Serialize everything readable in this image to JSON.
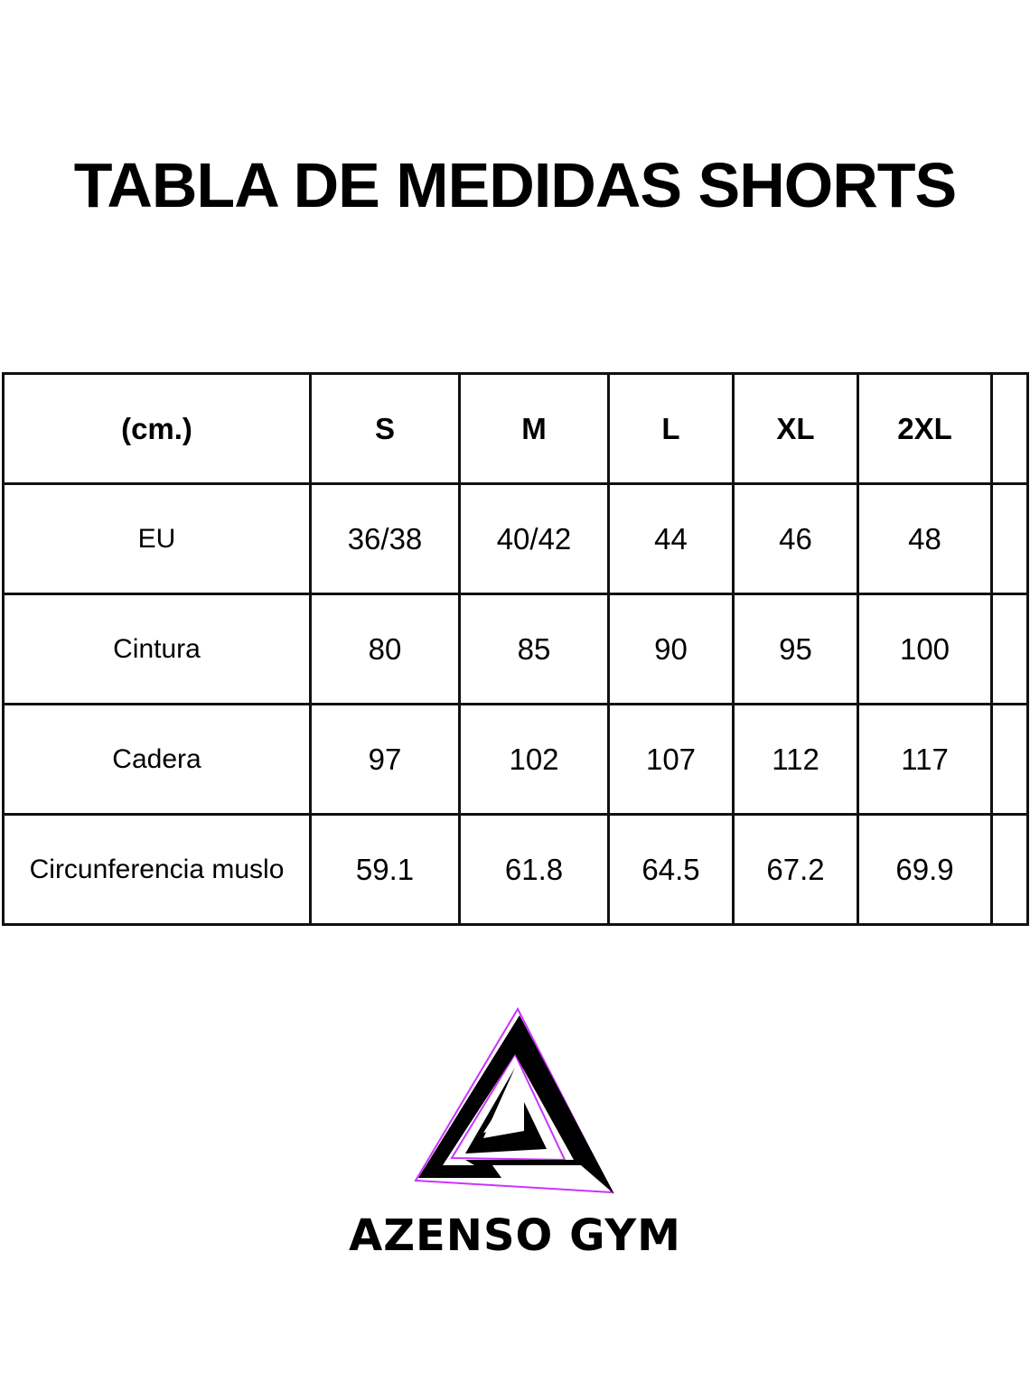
{
  "title": "TABLA DE MEDIDAS SHORTS",
  "table": {
    "header": [
      "(cm.)",
      "S",
      "M",
      "L",
      "XL",
      "2XL",
      ""
    ],
    "rows": [
      {
        "label": "EU",
        "values": [
          "36/38",
          "40/42",
          "44",
          "46",
          "48",
          ""
        ]
      },
      {
        "label": "Cintura",
        "values": [
          "80",
          "85",
          "90",
          "95",
          "100",
          ""
        ]
      },
      {
        "label": "Cadera",
        "values": [
          "97",
          "102",
          "107",
          "112",
          "117",
          ""
        ]
      },
      {
        "label": "Circunferencia muslo",
        "values": [
          "59.1",
          "61.8",
          "64.5",
          "67.2",
          "69.9",
          ""
        ]
      }
    ]
  },
  "logo": {
    "icon": "triangle-logo-icon",
    "accent_color": "#cc33ff",
    "text": "AZENSO GYM"
  },
  "brand": "AZENSO GYM"
}
